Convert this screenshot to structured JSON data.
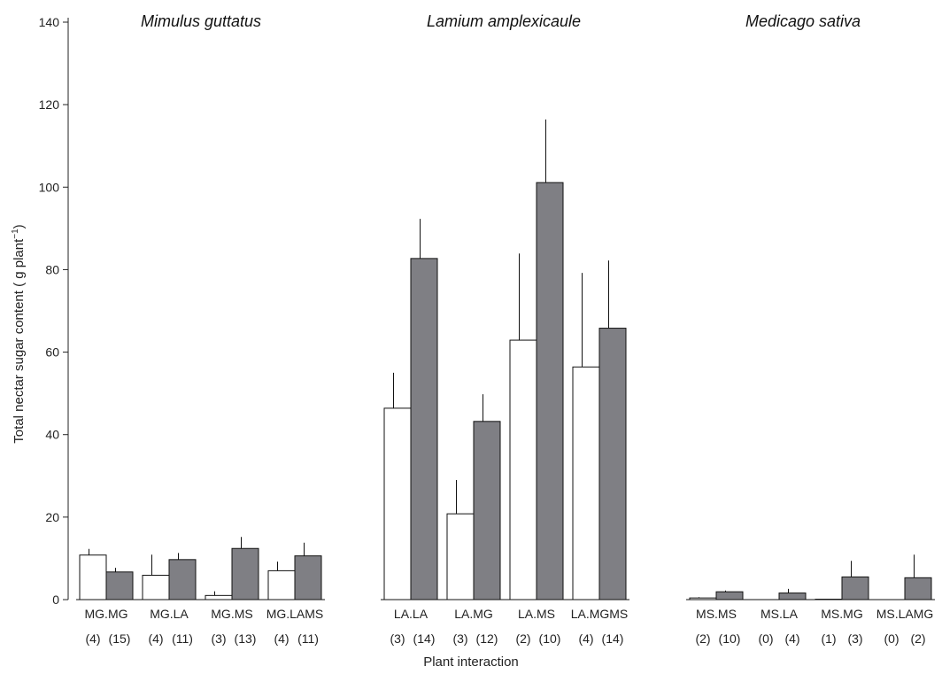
{
  "chart_data": {
    "type": "bar",
    "ylabel": "Total nectar sugar content (  g plant",
    "ylabel_sup": "−1",
    "ylabel_end": ")",
    "xlabel": "Plant interaction",
    "ylim": [
      0,
      140
    ],
    "yticks": [
      0,
      20,
      40,
      60,
      80,
      100,
      120,
      140
    ],
    "series_colors": [
      "#ffffff",
      "#7f7f84"
    ],
    "groups": [
      {
        "title": "Mimulus guttatus",
        "categories": [
          {
            "label": "MG.MG",
            "values": [
              10.8,
              6.7
            ],
            "errors": [
              1.5,
              1.0
            ],
            "n": [
              "(4)",
              "(15)"
            ]
          },
          {
            "label": "MG.LA",
            "values": [
              5.9,
              9.7
            ],
            "errors": [
              5.0,
              1.6
            ],
            "n": [
              "(4)",
              "(11)"
            ]
          },
          {
            "label": "MG.MS",
            "values": [
              1.0,
              12.4
            ],
            "errors": [
              1.0,
              2.8
            ],
            "n": [
              "(3)",
              "(13)"
            ]
          },
          {
            "label": "MG.LAMS",
            "values": [
              7.0,
              10.6
            ],
            "errors": [
              2.2,
              3.2
            ],
            "n": [
              "(4)",
              "(11)"
            ]
          }
        ]
      },
      {
        "title": "Lamium amplexicaule",
        "categories": [
          {
            "label": "LA.LA",
            "values": [
              46.4,
              82.7
            ],
            "errors": [
              8.6,
              9.6
            ],
            "n": [
              "(3)",
              "(14)"
            ]
          },
          {
            "label": "LA.MG",
            "values": [
              20.8,
              43.2
            ],
            "errors": [
              8.2,
              6.6
            ],
            "n": [
              "(3)",
              "(12)"
            ]
          },
          {
            "label": "LA.MS",
            "values": [
              62.9,
              101.1
            ],
            "errors": [
              21.0,
              15.3
            ],
            "n": [
              "(2)",
              "(10)"
            ]
          },
          {
            "label": "LA.MGMS",
            "values": [
              56.4,
              65.8
            ],
            "errors": [
              22.8,
              16.4
            ],
            "n": [
              "(4)",
              "(14)"
            ]
          }
        ]
      },
      {
        "title": "Medicago sativa",
        "categories": [
          {
            "label": "MS.MS",
            "values": [
              0.4,
              1.9
            ],
            "errors": [
              0.2,
              0.3
            ],
            "n": [
              "(2)",
              "(10)"
            ]
          },
          {
            "label": "MS.LA",
            "values": [
              0,
              1.6
            ],
            "errors": [
              0,
              1.0
            ],
            "n": [
              "(0)",
              "(4)"
            ]
          },
          {
            "label": "MS.MG",
            "values": [
              0.1,
              5.5
            ],
            "errors": [
              0,
              3.9
            ],
            "n": [
              "(1)",
              "(3)"
            ]
          },
          {
            "label": "MS.LAMG",
            "values": [
              0,
              5.3
            ],
            "errors": [
              0,
              5.6
            ],
            "n": [
              "(0)",
              "(2)"
            ]
          }
        ]
      }
    ]
  }
}
